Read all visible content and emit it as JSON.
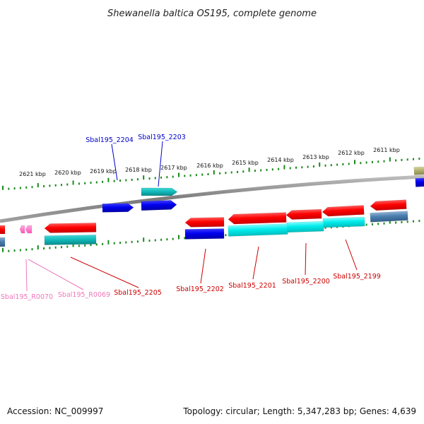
{
  "title": "Shewanella baltica OS195, complete genome",
  "footer": {
    "accession": "Accession: NC_009997",
    "topology": "Topology: circular; Length: 5,347,283 bp; Genes: 4,639"
  },
  "colors": {
    "backbone": "#8a8a8a",
    "tick": "#1a8a1a",
    "forward_label": "#0000cc",
    "reverse_label": "#cc0000",
    "rna_label": "#ee77bb",
    "red": "#ff0000",
    "blue": "#0000ee",
    "cyan": "#00e5e5",
    "teal": "#11bbbb",
    "steel": "#4a7fb0",
    "olive": "#b0b070",
    "pink": "#ff77cc"
  },
  "axis": {
    "unit": "kbp",
    "ticks": [
      {
        "label": "2611 kbp"
      },
      {
        "label": "2612 kbp"
      },
      {
        "label": "2613 kbp"
      },
      {
        "label": "2614 kbp"
      },
      {
        "label": "2615 kbp"
      },
      {
        "label": "2616 kbp"
      },
      {
        "label": "2617 kbp"
      },
      {
        "label": "2618 kbp"
      },
      {
        "label": "2619 kbp"
      },
      {
        "label": "2620 kbp"
      },
      {
        "label": "2621 kbp"
      }
    ]
  },
  "genes": [
    {
      "id": "Sbal195_2203",
      "strand": "forward",
      "track": "outer",
      "color": "teal"
    },
    {
      "id": "Sbal195_2203",
      "strand": "forward",
      "track": "inner",
      "color": "blue"
    },
    {
      "id": "Sbal195_2204",
      "strand": "forward",
      "track": "inner",
      "color": "blue"
    },
    {
      "id": "",
      "strand": "forward",
      "track": "outer",
      "color": "olive"
    },
    {
      "id": "",
      "strand": "forward",
      "track": "inner",
      "color": "blue"
    },
    {
      "id": "Sbal195_2199",
      "strand": "reverse",
      "track": "inner",
      "color": "red"
    },
    {
      "id": "Sbal195_2199",
      "strand": "reverse",
      "track": "outer",
      "color": "cyan"
    },
    {
      "id": "",
      "strand": "reverse",
      "track": "inner",
      "color": "red"
    },
    {
      "id": "",
      "strand": "reverse",
      "track": "outer",
      "color": "steel"
    },
    {
      "id": "Sbal195_2200",
      "strand": "reverse",
      "track": "inner",
      "color": "red"
    },
    {
      "id": "Sbal195_2200",
      "strand": "reverse",
      "track": "outer",
      "color": "cyan"
    },
    {
      "id": "Sbal195_2201",
      "strand": "reverse",
      "track": "inner",
      "color": "red"
    },
    {
      "id": "Sbal195_2201",
      "strand": "reverse",
      "track": "outer",
      "color": "cyan"
    },
    {
      "id": "Sbal195_2202",
      "strand": "reverse",
      "track": "inner",
      "color": "red"
    },
    {
      "id": "Sbal195_2202",
      "strand": "reverse",
      "track": "outer",
      "color": "blue"
    },
    {
      "id": "Sbal195_2205",
      "strand": "reverse",
      "track": "inner",
      "color": "red"
    },
    {
      "id": "Sbal195_2205",
      "strand": "reverse",
      "track": "outer",
      "color": "teal"
    },
    {
      "id": "",
      "strand": "reverse",
      "track": "inner",
      "color": "red"
    },
    {
      "id": "",
      "strand": "reverse",
      "track": "outer",
      "color": "steel"
    },
    {
      "id": "Sbal195_R0069",
      "strand": "reverse",
      "track": "inner",
      "color": "pink"
    },
    {
      "id": "Sbal195_R0070",
      "strand": "reverse",
      "track": "inner",
      "color": "pink"
    }
  ],
  "labels": [
    {
      "text": "Sbal195_2204",
      "class": "forward"
    },
    {
      "text": "Sbal195_2203",
      "class": "forward"
    },
    {
      "text": "Sbal195_2202",
      "class": "reverse"
    },
    {
      "text": "Sbal195_2201",
      "class": "reverse"
    },
    {
      "text": "Sbal195_2200",
      "class": "reverse"
    },
    {
      "text": "Sbal195_2199",
      "class": "reverse"
    },
    {
      "text": "Sbal195_2205",
      "class": "reverse"
    },
    {
      "text": "Sbal195_R0069",
      "class": "rna"
    },
    {
      "text": "Sbal195_R0070",
      "class": "rna"
    }
  ]
}
